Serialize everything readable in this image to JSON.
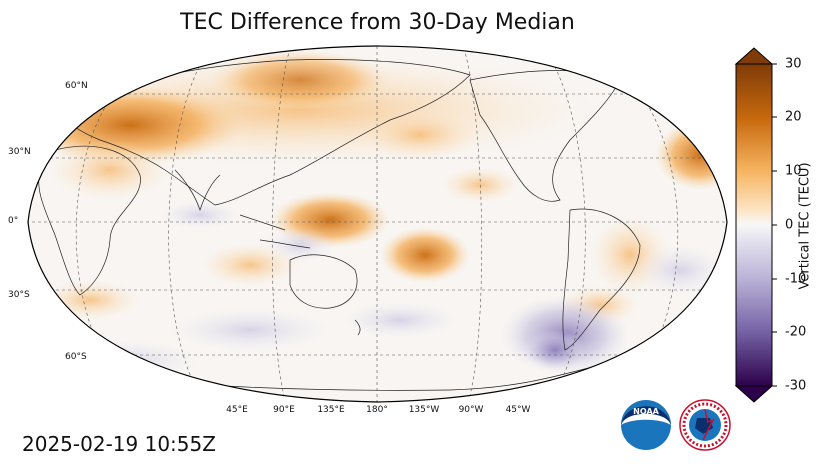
{
  "title": "TEC Difference from 30-Day Median",
  "timestamp": "2025-02-19 10:55Z",
  "colorbar": {
    "label": "Vertical TEC (TECU)",
    "ticks": [
      "30",
      "20",
      "10",
      "0",
      "-10",
      "-20",
      "-30"
    ],
    "range": [
      -30,
      30
    ]
  },
  "lat_labels": [
    "60°N",
    "30°N",
    "0°",
    "30°S",
    "60°S"
  ],
  "lon_labels": [
    "45°E",
    "90°E",
    "135°E",
    "180°",
    "135°W",
    "90°W",
    "45°W"
  ],
  "logos": {
    "noaa_text": "NOAA",
    "nws_text": "NATIONAL WEATHER SERVICE"
  },
  "colors": {
    "positive_max": "#7f3b08",
    "positive_mid": "#f1a340",
    "neutral": "#f7f7f7",
    "negative_mid": "#998ec3",
    "negative_max": "#2d004b"
  }
}
